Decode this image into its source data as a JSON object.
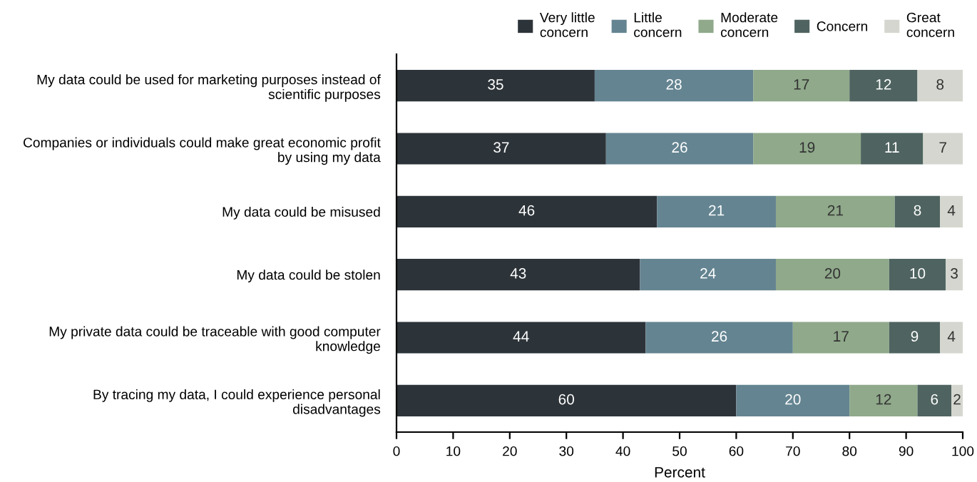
{
  "chart_data": {
    "type": "bar",
    "orientation": "horizontal",
    "stacked": true,
    "data_labels": true,
    "legend": "top",
    "grid": false,
    "xlabel": "Percent",
    "xlim": [
      0,
      100
    ],
    "xticks": [
      0,
      10,
      20,
      30,
      40,
      50,
      60,
      70,
      80,
      90,
      100
    ],
    "categories": [
      "My data could be used for marketing purposes instead of\nscientific purposes",
      "Companies or individuals could make great economic profit\nby using my data",
      "My data could be misused",
      "My data could be stolen",
      "My private data could be traceable with good computer\nknowledge",
      "By tracing my data, I could experience personal\ndisadvantages"
    ],
    "series": [
      {
        "name": "Very little\nconcern",
        "color": "#2d3439",
        "values": [
          35,
          37,
          46,
          43,
          44,
          60
        ]
      },
      {
        "name": "Little\nconcern",
        "color": "#648491",
        "values": [
          28,
          26,
          21,
          24,
          26,
          20
        ]
      },
      {
        "name": "Moderate\nconcern",
        "color": "#8fa98a",
        "values": [
          17,
          19,
          21,
          20,
          17,
          12
        ]
      },
      {
        "name": "Concern",
        "color": "#4f6460",
        "values": [
          12,
          11,
          8,
          10,
          9,
          6
        ]
      },
      {
        "name": "Great\nconcern",
        "color": "#d5d6cf",
        "values": [
          8,
          7,
          4,
          3,
          4,
          2
        ]
      }
    ]
  }
}
